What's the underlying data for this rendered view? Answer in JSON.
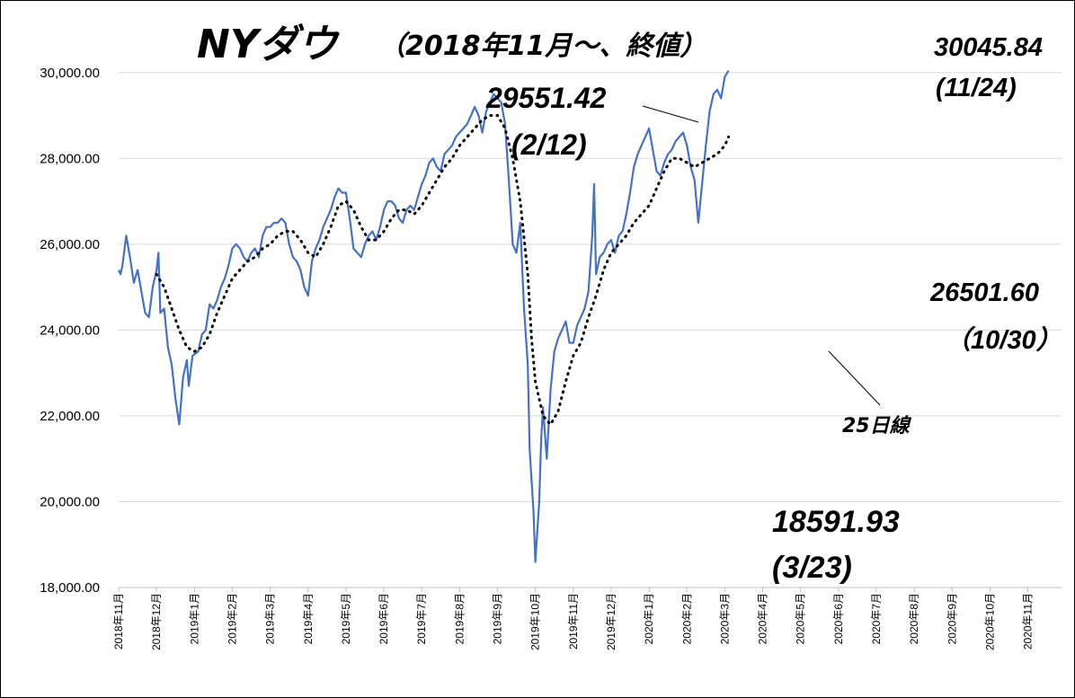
{
  "chart_data": {
    "type": "line",
    "title": "NYダウ",
    "subtitle": "（2018年11月〜、終値）",
    "ylim": [
      18000,
      31000
    ],
    "yticks": [
      "18,000.00",
      "20,000.00",
      "22,000.00",
      "24,000.00",
      "26,000.00",
      "28,000.00",
      "30,000.00"
    ],
    "ytick_values": [
      18000,
      20000,
      22000,
      24000,
      26000,
      28000,
      30000
    ],
    "x_labels": [
      "2018年11月",
      "2018年12月",
      "2019年1月",
      "2019年2月",
      "2019年3月",
      "2019年4月",
      "2019年5月",
      "2019年6月",
      "2019年7月",
      "2019年8月",
      "2019年9月",
      "2019年10月",
      "2019年11月",
      "2019年12月",
      "2020年1月",
      "2020年2月",
      "2020年3月",
      "2020年4月",
      "2020年5月",
      "2020年6月",
      "2020年7月",
      "2020年8月",
      "2020年9月",
      "2020年10月",
      "2020年11月"
    ],
    "grid": true,
    "colors": {
      "close": "#4472c4",
      "ma": "#000000"
    },
    "series": [
      {
        "name": "close",
        "style": "solid",
        "points": [
          [
            0,
            25400
          ],
          [
            0.05,
            25300
          ],
          [
            0.1,
            25500
          ],
          [
            0.2,
            26200
          ],
          [
            0.3,
            25700
          ],
          [
            0.4,
            25100
          ],
          [
            0.5,
            25400
          ],
          [
            0.6,
            24900
          ],
          [
            0.7,
            24400
          ],
          [
            0.8,
            24300
          ],
          [
            0.9,
            25000
          ],
          [
            1.0,
            25400
          ],
          [
            1.05,
            25800
          ],
          [
            1.1,
            24400
          ],
          [
            1.2,
            24500
          ],
          [
            1.3,
            23600
          ],
          [
            1.4,
            23200
          ],
          [
            1.5,
            22400
          ],
          [
            1.6,
            21800
          ],
          [
            1.7,
            22900
          ],
          [
            1.8,
            23300
          ],
          [
            1.85,
            22700
          ],
          [
            1.95,
            23400
          ],
          [
            2.1,
            23500
          ],
          [
            2.2,
            23900
          ],
          [
            2.3,
            24000
          ],
          [
            2.4,
            24600
          ],
          [
            2.5,
            24500
          ],
          [
            2.6,
            24700
          ],
          [
            2.7,
            25000
          ],
          [
            2.8,
            25200
          ],
          [
            2.9,
            25500
          ],
          [
            3.0,
            25900
          ],
          [
            3.1,
            26000
          ],
          [
            3.2,
            25900
          ],
          [
            3.3,
            25700
          ],
          [
            3.4,
            25600
          ],
          [
            3.5,
            25800
          ],
          [
            3.6,
            25900
          ],
          [
            3.7,
            25700
          ],
          [
            3.8,
            26200
          ],
          [
            3.9,
            26400
          ],
          [
            4.0,
            26400
          ],
          [
            4.1,
            26500
          ],
          [
            4.2,
            26500
          ],
          [
            4.3,
            26600
          ],
          [
            4.4,
            26500
          ],
          [
            4.5,
            26000
          ],
          [
            4.6,
            25700
          ],
          [
            4.7,
            25600
          ],
          [
            4.8,
            25400
          ],
          [
            4.9,
            25000
          ],
          [
            5.0,
            24800
          ],
          [
            5.1,
            25600
          ],
          [
            5.2,
            25900
          ],
          [
            5.3,
            26100
          ],
          [
            5.4,
            26400
          ],
          [
            5.5,
            26600
          ],
          [
            5.6,
            26800
          ],
          [
            5.7,
            27100
          ],
          [
            5.8,
            27300
          ],
          [
            5.9,
            27200
          ],
          [
            6.0,
            27200
          ],
          [
            6.1,
            26600
          ],
          [
            6.2,
            25900
          ],
          [
            6.3,
            25800
          ],
          [
            6.4,
            25700
          ],
          [
            6.5,
            26000
          ],
          [
            6.6,
            26200
          ],
          [
            6.7,
            26300
          ],
          [
            6.8,
            26100
          ],
          [
            6.9,
            26400
          ],
          [
            7.0,
            26800
          ],
          [
            7.1,
            27000
          ],
          [
            7.2,
            27000
          ],
          [
            7.3,
            26900
          ],
          [
            7.4,
            26600
          ],
          [
            7.5,
            26500
          ],
          [
            7.6,
            26800
          ],
          [
            7.7,
            26900
          ],
          [
            7.8,
            26800
          ],
          [
            7.9,
            27100
          ],
          [
            8.0,
            27400
          ],
          [
            8.1,
            27600
          ],
          [
            8.2,
            27900
          ],
          [
            8.3,
            28000
          ],
          [
            8.4,
            27800
          ],
          [
            8.5,
            27700
          ],
          [
            8.6,
            28100
          ],
          [
            8.7,
            28200
          ],
          [
            8.8,
            28300
          ],
          [
            8.9,
            28500
          ],
          [
            9.0,
            28600
          ],
          [
            9.1,
            28700
          ],
          [
            9.2,
            28800
          ],
          [
            9.3,
            29000
          ],
          [
            9.4,
            29200
          ],
          [
            9.5,
            29000
          ],
          [
            9.6,
            28600
          ],
          [
            9.7,
            29100
          ],
          [
            9.8,
            29300
          ],
          [
            9.9,
            29500
          ],
          [
            10.0,
            29400
          ],
          [
            10.1,
            29300
          ],
          [
            10.2,
            28800
          ],
          [
            10.3,
            27500
          ],
          [
            10.4,
            26000
          ],
          [
            10.5,
            25800
          ],
          [
            10.6,
            26500
          ],
          [
            10.7,
            24500
          ],
          [
            10.8,
            23200
          ],
          [
            10.85,
            21200
          ],
          [
            10.9,
            20500
          ],
          [
            10.95,
            19800
          ],
          [
            11.0,
            18591.93
          ],
          [
            11.1,
            20000
          ],
          [
            11.15,
            21400
          ],
          [
            11.2,
            22200
          ],
          [
            11.3,
            21000
          ],
          [
            11.4,
            22600
          ],
          [
            11.5,
            23500
          ],
          [
            11.6,
            23800
          ],
          [
            11.7,
            24000
          ],
          [
            11.8,
            24200
          ],
          [
            11.9,
            23700
          ],
          [
            12.0,
            23700
          ],
          [
            12.1,
            24100
          ],
          [
            12.2,
            24300
          ],
          [
            12.3,
            24500
          ],
          [
            12.4,
            24900
          ],
          [
            12.5,
            26200
          ],
          [
            12.55,
            27400
          ],
          [
            12.6,
            25300
          ],
          [
            12.7,
            25700
          ],
          [
            12.8,
            25800
          ],
          [
            12.9,
            26000
          ],
          [
            13.0,
            26100
          ],
          [
            13.1,
            25800
          ],
          [
            13.2,
            26200
          ],
          [
            13.3,
            26300
          ],
          [
            13.4,
            26700
          ],
          [
            13.5,
            27200
          ],
          [
            13.6,
            27800
          ],
          [
            13.7,
            28100
          ],
          [
            13.8,
            28300
          ],
          [
            13.9,
            28500
          ],
          [
            14.0,
            28700
          ],
          [
            14.1,
            28200
          ],
          [
            14.2,
            27700
          ],
          [
            14.3,
            27600
          ],
          [
            14.4,
            27900
          ],
          [
            14.5,
            28100
          ],
          [
            14.6,
            28200
          ],
          [
            14.7,
            28400
          ],
          [
            14.8,
            28500
          ],
          [
            14.9,
            28600
          ],
          [
            15.0,
            28300
          ],
          [
            15.1,
            27800
          ],
          [
            15.2,
            27500
          ],
          [
            15.3,
            26501.6
          ],
          [
            15.4,
            27400
          ],
          [
            15.5,
            28300
          ],
          [
            15.6,
            29100
          ],
          [
            15.7,
            29500
          ],
          [
            15.8,
            29600
          ],
          [
            15.9,
            29400
          ],
          [
            16.0,
            29900
          ],
          [
            16.1,
            30045.84
          ]
        ]
      },
      {
        "name": "25日線",
        "style": "dotted",
        "points": [
          [
            1.0,
            25300
          ],
          [
            1.2,
            25000
          ],
          [
            1.4,
            24500
          ],
          [
            1.6,
            24000
          ],
          [
            1.8,
            23600
          ],
          [
            2.0,
            23500
          ],
          [
            2.2,
            23600
          ],
          [
            2.4,
            23900
          ],
          [
            2.6,
            24400
          ],
          [
            2.8,
            24800
          ],
          [
            3.0,
            25200
          ],
          [
            3.2,
            25400
          ],
          [
            3.4,
            25600
          ],
          [
            3.6,
            25700
          ],
          [
            3.8,
            25900
          ],
          [
            4.0,
            26000
          ],
          [
            4.2,
            26200
          ],
          [
            4.4,
            26300
          ],
          [
            4.6,
            26300
          ],
          [
            4.8,
            26100
          ],
          [
            5.0,
            25800
          ],
          [
            5.2,
            25700
          ],
          [
            5.4,
            26000
          ],
          [
            5.6,
            26400
          ],
          [
            5.8,
            26900
          ],
          [
            6.0,
            27000
          ],
          [
            6.2,
            26800
          ],
          [
            6.4,
            26400
          ],
          [
            6.6,
            26100
          ],
          [
            6.8,
            26100
          ],
          [
            7.0,
            26300
          ],
          [
            7.2,
            26600
          ],
          [
            7.4,
            26800
          ],
          [
            7.6,
            26800
          ],
          [
            7.8,
            26700
          ],
          [
            8.0,
            26900
          ],
          [
            8.2,
            27200
          ],
          [
            8.4,
            27500
          ],
          [
            8.6,
            27800
          ],
          [
            8.8,
            28000
          ],
          [
            9.0,
            28300
          ],
          [
            9.2,
            28500
          ],
          [
            9.4,
            28700
          ],
          [
            9.6,
            28900
          ],
          [
            9.8,
            29000
          ],
          [
            10.0,
            29000
          ],
          [
            10.2,
            28700
          ],
          [
            10.4,
            28000
          ],
          [
            10.6,
            27000
          ],
          [
            10.8,
            25300
          ],
          [
            10.9,
            23800
          ],
          [
            11.0,
            22800
          ],
          [
            11.2,
            22000
          ],
          [
            11.4,
            21800
          ],
          [
            11.6,
            22100
          ],
          [
            11.8,
            22800
          ],
          [
            12.0,
            23400
          ],
          [
            12.2,
            23700
          ],
          [
            12.4,
            24300
          ],
          [
            12.6,
            24800
          ],
          [
            12.8,
            25400
          ],
          [
            13.0,
            25800
          ],
          [
            13.2,
            26000
          ],
          [
            13.4,
            26200
          ],
          [
            13.6,
            26500
          ],
          [
            13.8,
            26700
          ],
          [
            14.0,
            26900
          ],
          [
            14.2,
            27300
          ],
          [
            14.4,
            27700
          ],
          [
            14.6,
            28000
          ],
          [
            14.8,
            28000
          ],
          [
            15.0,
            27900
          ],
          [
            15.2,
            27800
          ],
          [
            15.4,
            27900
          ],
          [
            15.6,
            28000
          ],
          [
            15.8,
            28100
          ],
          [
            16.0,
            28300
          ],
          [
            16.1,
            28500
          ]
        ]
      }
    ],
    "annotations": [
      {
        "value_text": "29551.42",
        "date_text": "(2/12)",
        "x": 9.8,
        "y": 29551.42
      },
      {
        "value_text": "18591.93",
        "date_text": "(3/23)",
        "x": 11.0,
        "y": 18591.93
      },
      {
        "value_text": "30045.84",
        "date_text": "(11/24)",
        "x": 16.1,
        "y": 30045.84
      },
      {
        "value_text": "26501.60",
        "date_text": "（10/30）",
        "x": 15.3,
        "y": 26501.6
      }
    ],
    "ma_label": "25日線"
  }
}
